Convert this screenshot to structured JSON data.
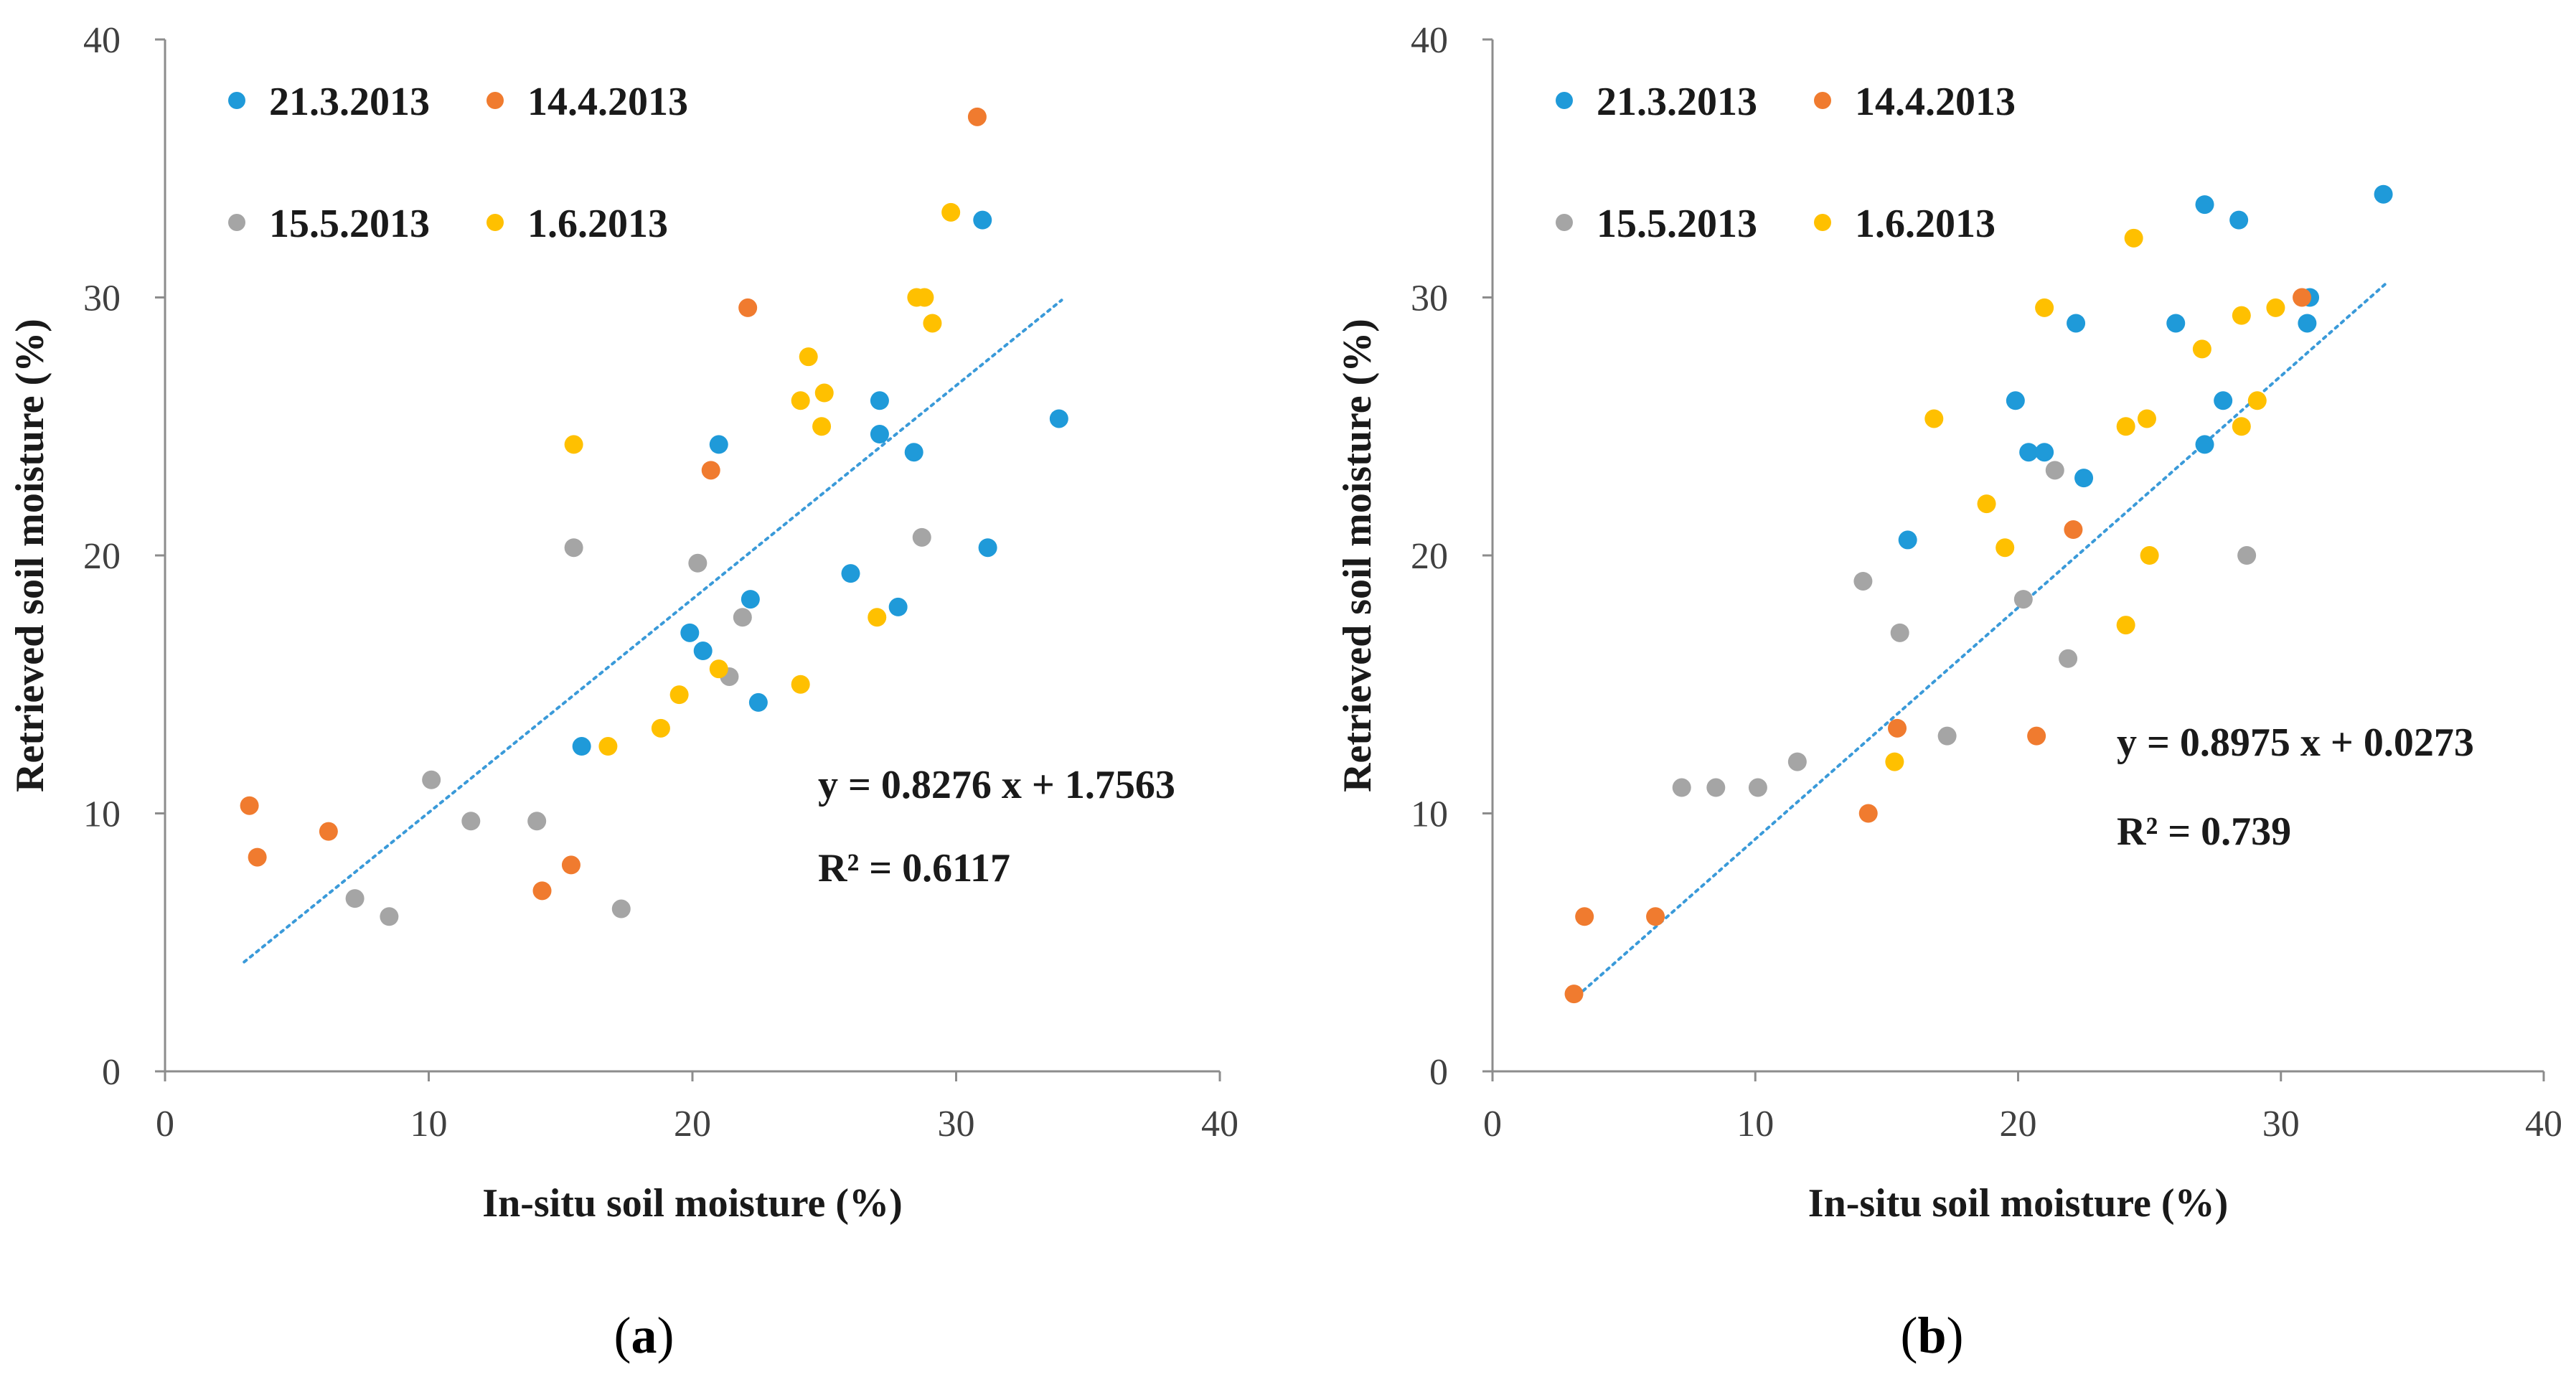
{
  "chart_data": [
    {
      "type": "scatter",
      "panel_label": "a",
      "caption_open": "(",
      "caption_close": ")",
      "xlabel": "In-situ soil moisture (%)",
      "ylabel": "Retrieved soil moisture (%)",
      "xlim": [
        0,
        40
      ],
      "ylim": [
        0,
        40
      ],
      "xticks": [
        "0",
        "10",
        "20",
        "30",
        "40"
      ],
      "yticks": [
        "0",
        "10",
        "20",
        "30",
        "40"
      ],
      "equation": "y = 0.8276 x + 1.7563",
      "r2": "R² = 0.6117",
      "trendline": {
        "slope": 0.8276,
        "intercept": 1.7563,
        "x_range": [
          3.0,
          34.0
        ],
        "color": "#3a9ad9"
      },
      "series": [
        {
          "name": "21.3.2013",
          "color": "#1f9ad9",
          "points": [
            [
              31.0,
              33.0
            ],
            [
              33.9,
              25.3
            ],
            [
              27.1,
              26.0
            ],
            [
              27.1,
              24.7
            ],
            [
              28.4,
              24.0
            ],
            [
              21.0,
              24.3
            ],
            [
              31.2,
              20.3
            ],
            [
              26.0,
              19.3
            ],
            [
              27.8,
              18.0
            ],
            [
              22.2,
              18.3
            ],
            [
              19.9,
              17.0
            ],
            [
              20.4,
              16.3
            ],
            [
              22.5,
              14.3
            ],
            [
              15.8,
              12.6
            ]
          ]
        },
        {
          "name": "14.4.2013",
          "color": "#f07b2f",
          "points": [
            [
              30.8,
              37.0
            ],
            [
              22.1,
              29.6
            ],
            [
              20.7,
              23.3
            ],
            [
              3.2,
              10.3
            ],
            [
              3.5,
              8.3
            ],
            [
              6.2,
              9.3
            ],
            [
              15.4,
              8.0
            ],
            [
              14.3,
              7.0
            ]
          ]
        },
        {
          "name": "15.5.2013",
          "color": "#a5a5a5",
          "points": [
            [
              15.5,
              20.3
            ],
            [
              20.2,
              19.7
            ],
            [
              28.7,
              20.7
            ],
            [
              21.9,
              17.6
            ],
            [
              21.4,
              15.3
            ],
            [
              10.1,
              11.3
            ],
            [
              11.6,
              9.7
            ],
            [
              14.1,
              9.7
            ],
            [
              7.2,
              6.7
            ],
            [
              8.5,
              6.0
            ],
            [
              17.3,
              6.3
            ]
          ]
        },
        {
          "name": "1.6.2013",
          "color": "#ffc000",
          "points": [
            [
              29.8,
              33.3
            ],
            [
              28.5,
              30.0
            ],
            [
              28.8,
              30.0
            ],
            [
              29.1,
              29.0
            ],
            [
              24.4,
              27.7
            ],
            [
              24.1,
              26.0
            ],
            [
              25.0,
              26.3
            ],
            [
              24.9,
              25.0
            ],
            [
              15.5,
              24.3
            ],
            [
              27.0,
              17.6
            ],
            [
              24.1,
              15.0
            ],
            [
              21.0,
              15.6
            ],
            [
              19.5,
              14.6
            ],
            [
              18.8,
              13.3
            ],
            [
              16.8,
              12.6
            ]
          ]
        }
      ]
    },
    {
      "type": "scatter",
      "panel_label": "b",
      "caption_open": "(",
      "caption_close": ")",
      "xlabel": "In-situ soil moisture (%)",
      "ylabel": "Retrieved soil moisture (%)",
      "xlim": [
        0,
        40
      ],
      "ylim": [
        0,
        40
      ],
      "xticks": [
        "0",
        "10",
        "20",
        "30",
        "40"
      ],
      "yticks": [
        "0",
        "10",
        "20",
        "30",
        "40"
      ],
      "equation": "y = 0.8975 x + 0.0273",
      "r2": "R² = 0.739",
      "trendline": {
        "slope": 0.8975,
        "intercept": 0.0273,
        "x_range": [
          3.0,
          34.0
        ],
        "color": "#3a9ad9"
      },
      "series": [
        {
          "name": "21.3.2013",
          "color": "#1f9ad9",
          "points": [
            [
              33.9,
              34.0
            ],
            [
              27.1,
              33.6
            ],
            [
              28.4,
              33.0
            ],
            [
              31.1,
              30.0
            ],
            [
              31.0,
              29.0
            ],
            [
              26.0,
              29.0
            ],
            [
              22.2,
              29.0
            ],
            [
              19.9,
              26.0
            ],
            [
              27.8,
              26.0
            ],
            [
              27.1,
              24.3
            ],
            [
              20.4,
              24.0
            ],
            [
              21.0,
              24.0
            ],
            [
              22.5,
              23.0
            ],
            [
              15.8,
              20.6
            ]
          ]
        },
        {
          "name": "14.4.2013",
          "color": "#f07b2f",
          "points": [
            [
              30.8,
              30.0
            ],
            [
              22.1,
              21.0
            ],
            [
              15.4,
              13.3
            ],
            [
              20.7,
              13.0
            ],
            [
              14.3,
              10.0
            ],
            [
              3.5,
              6.0
            ],
            [
              6.2,
              6.0
            ],
            [
              3.1,
              3.0
            ]
          ]
        },
        {
          "name": "15.5.2013",
          "color": "#a5a5a5",
          "points": [
            [
              21.4,
              23.3
            ],
            [
              28.7,
              20.0
            ],
            [
              14.1,
              19.0
            ],
            [
              20.2,
              18.3
            ],
            [
              15.5,
              17.0
            ],
            [
              21.9,
              16.0
            ],
            [
              17.3,
              13.0
            ],
            [
              11.6,
              12.0
            ],
            [
              7.2,
              11.0
            ],
            [
              8.5,
              11.0
            ],
            [
              10.1,
              11.0
            ]
          ]
        },
        {
          "name": "1.6.2013",
          "color": "#ffc000",
          "points": [
            [
              24.4,
              32.3
            ],
            [
              29.8,
              29.6
            ],
            [
              21.0,
              29.6
            ],
            [
              28.5,
              29.3
            ],
            [
              27.0,
              28.0
            ],
            [
              29.1,
              26.0
            ],
            [
              16.8,
              25.3
            ],
            [
              24.9,
              25.3
            ],
            [
              24.1,
              25.0
            ],
            [
              28.5,
              25.0
            ],
            [
              18.8,
              22.0
            ],
            [
              19.5,
              20.3
            ],
            [
              25.0,
              20.0
            ],
            [
              24.1,
              17.3
            ],
            [
              15.3,
              12.0
            ]
          ]
        }
      ]
    }
  ]
}
